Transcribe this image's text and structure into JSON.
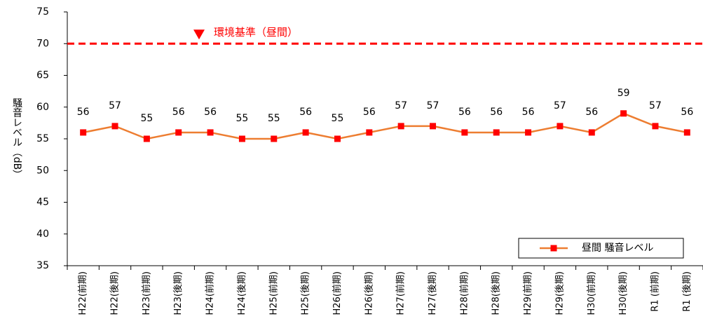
{
  "chart_data": {
    "type": "line",
    "y_label": "騒音レベル（dB）",
    "categories": [
      "H22(前期)",
      "H22(後期)",
      "H23(前期)",
      "H23(後期)",
      "H24(前期)",
      "H24(後期)",
      "H25(前期)",
      "H25(後期)",
      "H26(前期)",
      "H26(後期)",
      "H27(前期)",
      "H27(後期)",
      "H28(前期)",
      "H28(後期)",
      "H29(前期)",
      "H29(後期)",
      "H30(前期)",
      "H30(後期)",
      "R1 (前期)",
      "R1 (後期)"
    ],
    "series": [
      {
        "name": "昼間 騒音レベル",
        "color": "#ed7d31",
        "marker_color": "#ff0000",
        "values": [
          56,
          57,
          55,
          56,
          56,
          55,
          55,
          56,
          55,
          56,
          57,
          57,
          56,
          56,
          56,
          57,
          56,
          59,
          57,
          56
        ]
      }
    ],
    "reference": {
      "value": 70,
      "label": "環境基準（昼間）",
      "color": "#ff0000"
    },
    "ylim": [
      35,
      75
    ],
    "yticks": [
      35,
      40,
      45,
      50,
      55,
      60,
      65,
      70,
      75
    ],
    "grid": false,
    "legend": "lower right"
  }
}
